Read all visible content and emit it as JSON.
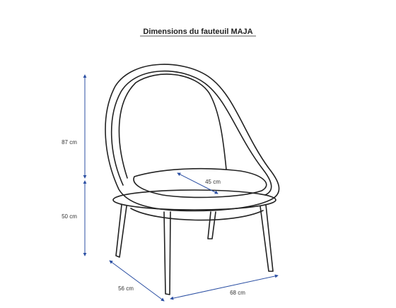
{
  "title": "Dimensions du fauteuil MAJA",
  "dimensions": {
    "total_height": "87 cm",
    "seat_height": "50 cm",
    "seat_depth": "45 cm",
    "depth": "56 cm",
    "width": "68 cm"
  }
}
